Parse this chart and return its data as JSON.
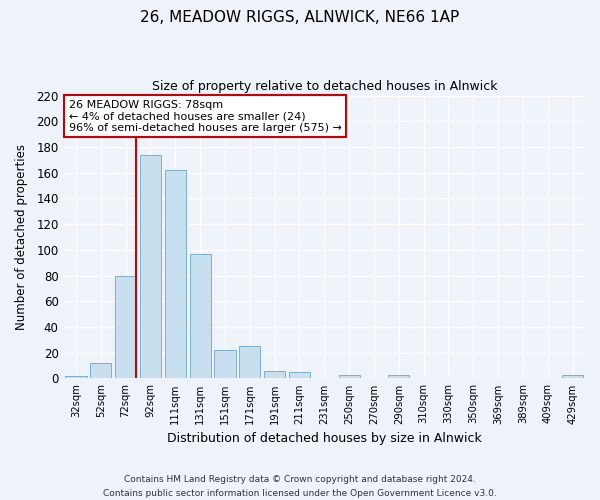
{
  "title": "26, MEADOW RIGGS, ALNWICK, NE66 1AP",
  "subtitle": "Size of property relative to detached houses in Alnwick",
  "xlabel": "Distribution of detached houses by size in Alnwick",
  "ylabel": "Number of detached properties",
  "bar_labels": [
    "32sqm",
    "52sqm",
    "72sqm",
    "92sqm",
    "111sqm",
    "131sqm",
    "151sqm",
    "171sqm",
    "191sqm",
    "211sqm",
    "231sqm",
    "250sqm",
    "270sqm",
    "290sqm",
    "310sqm",
    "330sqm",
    "350sqm",
    "369sqm",
    "389sqm",
    "409sqm",
    "429sqm"
  ],
  "bar_values": [
    2,
    12,
    80,
    174,
    162,
    97,
    22,
    25,
    6,
    5,
    0,
    3,
    0,
    3,
    0,
    0,
    0,
    0,
    0,
    0,
    3
  ],
  "bar_color": "#c8dff0",
  "bar_edge_color": "#7ab0d4",
  "ylim": [
    0,
    220
  ],
  "yticks": [
    0,
    20,
    40,
    60,
    80,
    100,
    120,
    140,
    160,
    180,
    200,
    220
  ],
  "vline_x_index": 2,
  "vline_color": "#cc0000",
  "annotation_line1": "26 MEADOW RIGGS: 78sqm",
  "annotation_line2": "← 4% of detached houses are smaller (24)",
  "annotation_line3": "96% of semi-detached houses are larger (575) →",
  "annotation_box_edgecolor": "#cc0000",
  "footer_line1": "Contains HM Land Registry data © Crown copyright and database right 2024.",
  "footer_line2": "Contains public sector information licensed under the Open Government Licence v3.0.",
  "bg_color": "#eef2f9"
}
